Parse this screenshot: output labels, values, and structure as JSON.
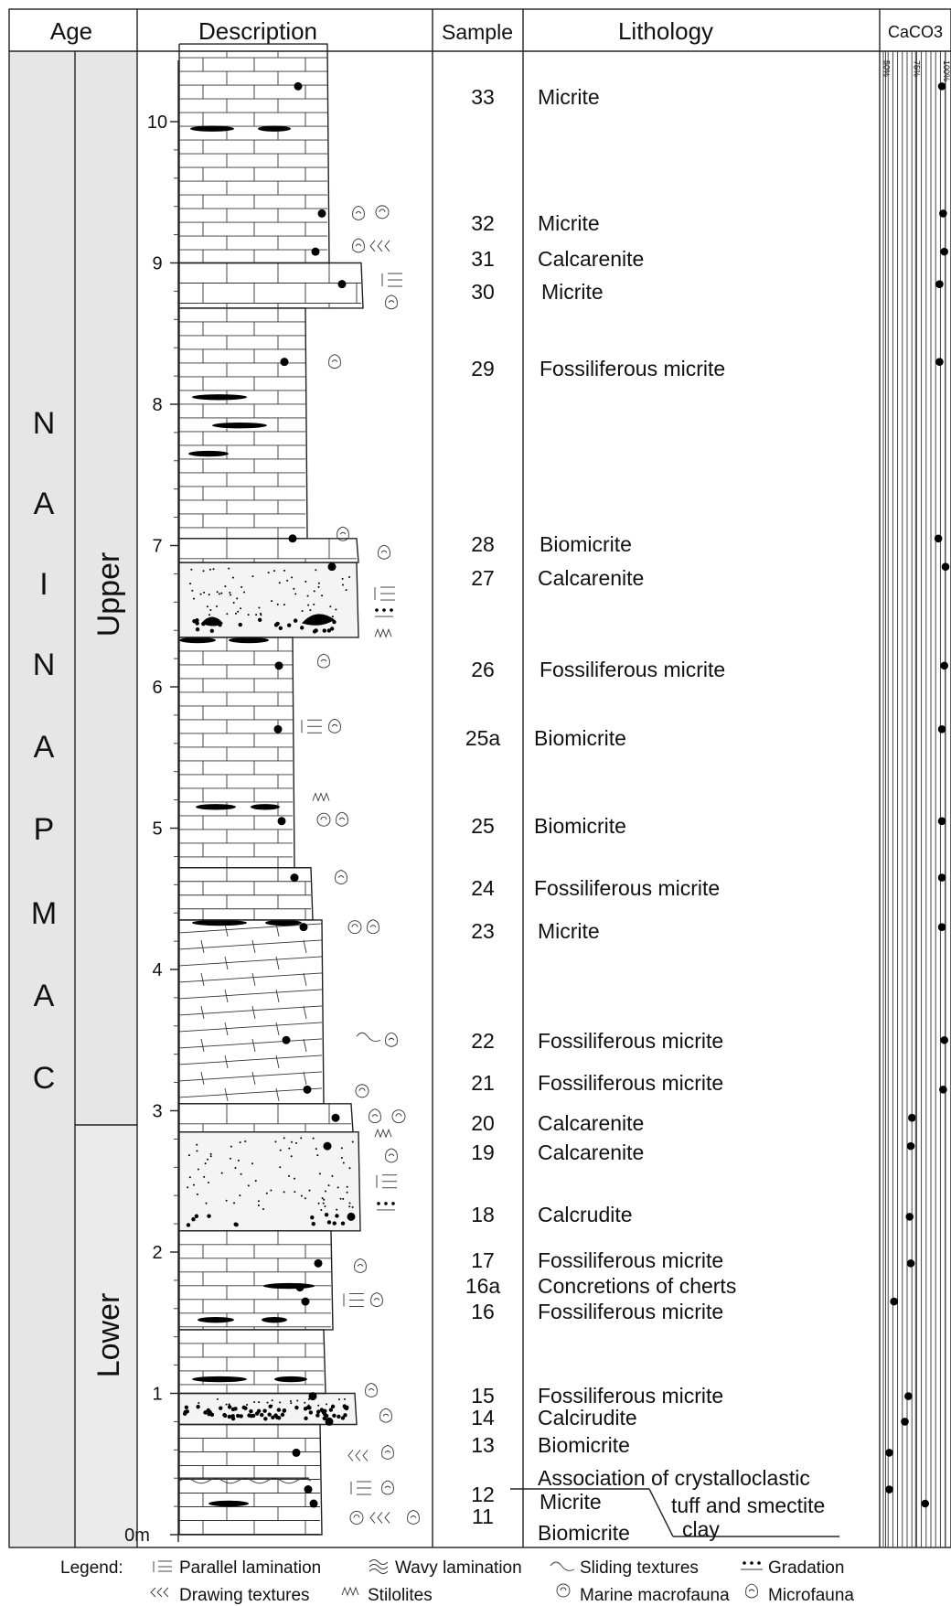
{
  "header": {
    "age": "Age",
    "description": "Description",
    "sample": "Sample",
    "lithology": "Lithology",
    "caco3": "CaCO3",
    "caco3_ticks": [
      "50%",
      "75%",
      "100%"
    ]
  },
  "stage": {
    "letters": [
      "C",
      "A",
      "M",
      "P",
      "A",
      "N",
      "I",
      "A",
      "N"
    ]
  },
  "substage": {
    "upper": "Upper",
    "lower": "Lower"
  },
  "depth_ticks": [
    "0m",
    "1",
    "2",
    "3",
    "4",
    "5",
    "6",
    "7",
    "8",
    "9",
    "10"
  ],
  "samples": [
    {
      "id": "33",
      "lith": "Micrite",
      "caco3": 97,
      "depth": 10.25
    },
    {
      "id": "32",
      "lith": "Micrite",
      "caco3": 98,
      "depth": 9.35
    },
    {
      "id": "31",
      "lith": "Calcarenite",
      "caco3": 99,
      "depth": 9.08
    },
    {
      "id": "30",
      "lith": "Micrite",
      "caco3": 95,
      "depth": 8.85
    },
    {
      "id": "29",
      "lith": "Fossiliferous micrite",
      "caco3": 95,
      "depth": 8.3
    },
    {
      "id": "28",
      "lith": "Biomicrite",
      "caco3": 94,
      "depth": 7.05
    },
    {
      "id": "27",
      "lith": "Calcarenite",
      "caco3": 100,
      "depth": 6.85
    },
    {
      "id": "26",
      "lith": "Fossiliferous micrite",
      "caco3": 99,
      "depth": 6.15
    },
    {
      "id": "25a",
      "lith": "Biomicrite",
      "caco3": 97,
      "depth": 5.7
    },
    {
      "id": "25",
      "lith": "Biomicrite",
      "caco3": 97,
      "depth": 5.05
    },
    {
      "id": "24",
      "lith": "Fossiliferous micrite",
      "caco3": 97,
      "depth": 4.65
    },
    {
      "id": "23",
      "lith": "Micrite",
      "caco3": 97,
      "depth": 4.3
    },
    {
      "id": "22",
      "lith": "Fossiliferous micrite",
      "caco3": 99,
      "depth": 3.5
    },
    {
      "id": "21",
      "lith": "Fossiliferous micrite",
      "caco3": 98,
      "depth": 3.15
    },
    {
      "id": "20",
      "lith": "Calcarenite",
      "caco3": 72,
      "depth": 2.95
    },
    {
      "id": "19",
      "lith": "Calcarenite",
      "caco3": 71,
      "depth": 2.75
    },
    {
      "id": "18",
      "lith": "Calcrudite",
      "caco3": 70,
      "depth": 2.25
    },
    {
      "id": "17",
      "lith": "Fossiliferous micrite",
      "caco3": 71,
      "depth": 1.92
    },
    {
      "id": "16a",
      "lith": "Concretions of cherts",
      "caco3": null,
      "depth": 1.75
    },
    {
      "id": "16",
      "lith": "Fossiliferous micrite",
      "caco3": 57,
      "depth": 1.65
    },
    {
      "id": "15",
      "lith": "Fossiliferous micrite",
      "caco3": 69,
      "depth": 0.98
    },
    {
      "id": "14",
      "lith": "Calcirudite",
      "caco3": 66,
      "depth": 0.8
    },
    {
      "id": "13",
      "lith": "Biomicrite",
      "caco3": 53,
      "depth": 0.58
    },
    {
      "id": "12",
      "lith": "Micrite",
      "caco3": 53,
      "depth": 0.32
    },
    {
      "id": "11",
      "lith": "Biomicrite",
      "caco3": 83,
      "depth": 0.22
    }
  ],
  "tuff_note": [
    "Association of crystalloclastic",
    "tuff and smectite",
    "clay"
  ],
  "legend": {
    "title": "Legend:",
    "items": [
      {
        "sym": "parallel",
        "label": "Parallel lamination"
      },
      {
        "sym": "wavy",
        "label": "Wavy lamination"
      },
      {
        "sym": "sliding",
        "label": "Sliding textures"
      },
      {
        "sym": "gradation",
        "label": "Gradation"
      },
      {
        "sym": "drawing",
        "label": "Drawing textures"
      },
      {
        "sym": "stilolites",
        "label": "Stilolites"
      },
      {
        "sym": "macrofauna",
        "label": "Marine macrofauna"
      },
      {
        "sym": "microfauna",
        "label": "Microfauna"
      }
    ]
  }
}
